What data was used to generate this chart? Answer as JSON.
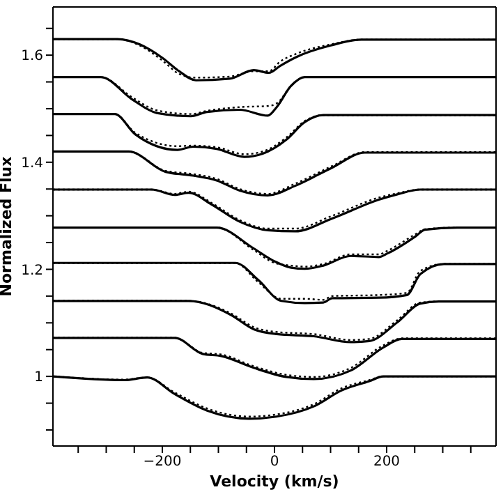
{
  "chart_data": {
    "type": "line",
    "xlabel": "Velocity (km/s)",
    "ylabel": "Normalized Flux",
    "xlim": [
      -395,
      395
    ],
    "ylim": [
      0.87,
      1.69
    ],
    "xticks": [
      {
        "value": -350,
        "label": null
      },
      {
        "value": -300,
        "label": null
      },
      {
        "value": -250,
        "label": null
      },
      {
        "value": -200,
        "label": "−200"
      },
      {
        "value": -150,
        "label": null
      },
      {
        "value": -100,
        "label": null
      },
      {
        "value": -50,
        "label": null
      },
      0,
      {
        "value": 50,
        "label": null
      },
      {
        "value": 100,
        "label": null
      },
      {
        "value": 150,
        "label": null
      },
      200,
      {
        "value": 250,
        "label": null
      },
      {
        "value": 300,
        "label": null
      },
      {
        "value": 350,
        "label": null
      }
    ],
    "yticks": [
      {
        "value": 0.9,
        "label": null
      },
      {
        "value": 0.95,
        "label": null
      },
      1,
      {
        "value": 1.05,
        "label": null
      },
      {
        "value": 1.1,
        "label": null
      },
      {
        "value": 1.15,
        "label": null
      },
      1.2,
      {
        "value": 1.25,
        "label": null
      },
      {
        "value": 1.3,
        "label": null
      },
      {
        "value": 1.35,
        "label": null
      },
      1.4,
      {
        "value": 1.45,
        "label": null
      },
      {
        "value": 1.5,
        "label": null
      },
      {
        "value": 1.55,
        "label": null
      },
      1.6,
      {
        "value": 1.65,
        "label": null
      }
    ],
    "marker": "none",
    "series": [
      {
        "color": "#000000",
        "line_style": "solid",
        "x": [
          -395,
          -280,
          -240,
          -200,
          -170,
          -140,
          -80,
          -37,
          -10,
          10,
          40,
          100,
          155,
          395
        ],
        "values": [
          1.63,
          1.63,
          1.62,
          1.595,
          1.57,
          1.553,
          1.556,
          1.572,
          1.567,
          1.58,
          1.597,
          1.618,
          1.629,
          1.629
        ]
      },
      {
        "color": "#000000",
        "line_style": "dotted",
        "x": [
          -395,
          -280,
          -240,
          -200,
          -170,
          -140,
          -80,
          -37,
          -10,
          10,
          40,
          100,
          155,
          395
        ],
        "values": [
          1.63,
          1.63,
          1.618,
          1.59,
          1.565,
          1.558,
          1.56,
          1.57,
          1.57,
          1.588,
          1.603,
          1.62,
          1.629,
          1.629
        ]
      },
      {
        "color": "#000000",
        "line_style": "solid",
        "x": [
          -395,
          -310,
          -252,
          -210,
          -149,
          -120,
          -62,
          -12,
          4,
          29,
          54,
          395
        ],
        "values": [
          1.559,
          1.559,
          1.516,
          1.492,
          1.486,
          1.494,
          1.498,
          1.487,
          1.503,
          1.542,
          1.559,
          1.559
        ]
      },
      {
        "color": "#000000",
        "line_style": "dotted",
        "x": [
          -395,
          -310,
          -252,
          -210,
          -149,
          -120,
          -62,
          -12,
          4,
          29,
          54,
          395
        ],
        "values": [
          1.559,
          1.559,
          1.52,
          1.497,
          1.49,
          1.496,
          1.503,
          1.505,
          1.51,
          1.542,
          1.559,
          1.559
        ]
      },
      {
        "color": "#000000",
        "line_style": "solid",
        "x": [
          -395,
          -285,
          -248,
          -173,
          -145,
          -103,
          -54,
          -21,
          21,
          54,
          87,
          395
        ],
        "values": [
          1.49,
          1.49,
          1.452,
          1.423,
          1.429,
          1.425,
          1.41,
          1.416,
          1.442,
          1.475,
          1.488,
          1.488
        ]
      },
      {
        "color": "#000000",
        "line_style": "dotted",
        "x": [
          -395,
          -285,
          -248,
          -173,
          -145,
          -103,
          -54,
          -21,
          21,
          54,
          87,
          395
        ],
        "values": [
          1.49,
          1.49,
          1.455,
          1.43,
          1.431,
          1.428,
          1.415,
          1.42,
          1.446,
          1.477,
          1.488,
          1.488
        ]
      },
      {
        "color": "#000000",
        "line_style": "solid",
        "x": [
          -395,
          -260,
          -194,
          -145,
          -103,
          -62,
          -12,
          37,
          103,
          161,
          395
        ],
        "values": [
          1.42,
          1.42,
          1.382,
          1.375,
          1.366,
          1.347,
          1.338,
          1.356,
          1.39,
          1.418,
          1.418
        ]
      },
      {
        "color": "#000000",
        "line_style": "dotted",
        "x": [
          -395,
          -260,
          -194,
          -145,
          -103,
          -62,
          -12,
          37,
          103,
          161,
          395
        ],
        "values": [
          1.42,
          1.42,
          1.384,
          1.378,
          1.369,
          1.35,
          1.341,
          1.36,
          1.393,
          1.419,
          1.419
        ]
      },
      {
        "color": "#000000",
        "line_style": "solid",
        "x": [
          -395,
          -219,
          -178,
          -153,
          -112,
          -62,
          -12,
          37,
          103,
          186,
          219,
          260,
          395
        ],
        "values": [
          1.349,
          1.349,
          1.339,
          1.343,
          1.321,
          1.289,
          1.273,
          1.271,
          1.295,
          1.33,
          1.34,
          1.349,
          1.349
        ]
      },
      {
        "color": "#000000",
        "line_style": "dotted",
        "x": [
          -395,
          -219,
          -178,
          -153,
          -112,
          -62,
          -12,
          37,
          103,
          186,
          219,
          260,
          395
        ],
        "values": [
          1.349,
          1.349,
          1.341,
          1.345,
          1.324,
          1.292,
          1.276,
          1.276,
          1.3,
          1.334,
          1.342,
          1.349,
          1.349
        ]
      },
      {
        "color": "#000000",
        "line_style": "solid",
        "x": [
          -395,
          -103,
          -37,
          0,
          30,
          54,
          87,
          136,
          186,
          202,
          252,
          268,
          326,
          395
        ],
        "values": [
          1.278,
          1.278,
          1.239,
          1.215,
          1.203,
          1.201,
          1.207,
          1.225,
          1.223,
          1.23,
          1.262,
          1.274,
          1.278,
          1.278
        ]
      },
      {
        "color": "#000000",
        "line_style": "dotted",
        "x": [
          -395,
          -103,
          -37,
          0,
          30,
          54,
          87,
          136,
          186,
          202,
          252,
          268,
          326,
          395
        ],
        "values": [
          1.278,
          1.278,
          1.236,
          1.212,
          1.207,
          1.205,
          1.21,
          1.228,
          1.228,
          1.235,
          1.266,
          1.275,
          1.278,
          1.278
        ]
      },
      {
        "color": "#000000",
        "line_style": "solid",
        "x": [
          -395,
          -70,
          -29,
          12,
          54,
          87,
          103,
          186,
          236,
          260,
          302,
          395
        ],
        "values": [
          1.212,
          1.212,
          1.18,
          1.141,
          1.137,
          1.138,
          1.146,
          1.147,
          1.152,
          1.191,
          1.21,
          1.21
        ]
      },
      {
        "color": "#000000",
        "line_style": "dotted",
        "x": [
          -395,
          -70,
          -29,
          12,
          54,
          87,
          103,
          186,
          236,
          260,
          302,
          395
        ],
        "values": [
          1.212,
          1.212,
          1.176,
          1.145,
          1.145,
          1.143,
          1.15,
          1.152,
          1.156,
          1.197,
          1.21,
          1.21
        ]
      },
      {
        "color": "#000000",
        "line_style": "solid",
        "x": [
          -395,
          -153,
          -78,
          -37,
          4,
          70,
          136,
          169,
          219,
          260,
          293,
          395
        ],
        "values": [
          1.141,
          1.141,
          1.115,
          1.088,
          1.079,
          1.075,
          1.064,
          1.066,
          1.101,
          1.136,
          1.14,
          1.14
        ]
      },
      {
        "color": "#000000",
        "line_style": "dotted",
        "x": [
          -395,
          -153,
          -78,
          -37,
          4,
          70,
          136,
          169,
          219,
          260,
          293,
          395
        ],
        "values": [
          1.141,
          1.141,
          1.118,
          1.092,
          1.083,
          1.079,
          1.068,
          1.07,
          1.105,
          1.138,
          1.14,
          1.14
        ]
      },
      {
        "color": "#000000",
        "line_style": "solid",
        "x": [
          -395,
          -178,
          -128,
          -95,
          -37,
          21,
          70,
          136,
          194,
          227,
          395
        ],
        "values": [
          1.072,
          1.072,
          1.042,
          1.038,
          1.016,
          0.999,
          0.995,
          1.011,
          1.054,
          1.07,
          1.07
        ]
      },
      {
        "color": "#000000",
        "line_style": "dotted",
        "x": [
          -395,
          -178,
          -128,
          -95,
          -37,
          21,
          70,
          136,
          194,
          227,
          395
        ],
        "values": [
          1.072,
          1.072,
          1.044,
          1.041,
          1.019,
          1.003,
          0.999,
          1.016,
          1.058,
          1.071,
          1.071
        ]
      },
      {
        "color": "#000000",
        "line_style": "solid",
        "x": [
          -395,
          -268,
          -227,
          -178,
          -120,
          -45,
          4,
          70,
          120,
          169,
          194,
          395
        ],
        "values": [
          1.0,
          0.993,
          0.998,
          0.967,
          0.936,
          0.921,
          0.925,
          0.944,
          0.974,
          0.991,
          1.0,
          1.0
        ]
      },
      {
        "color": "#000000",
        "line_style": "dotted",
        "x": [
          -395,
          -268,
          -227,
          -178,
          -120,
          -45,
          4,
          70,
          120,
          169,
          194,
          395
        ],
        "values": [
          1.0,
          0.994,
          0.998,
          0.97,
          0.94,
          0.925,
          0.929,
          0.948,
          0.978,
          0.993,
          1.0,
          1.0
        ]
      }
    ]
  }
}
